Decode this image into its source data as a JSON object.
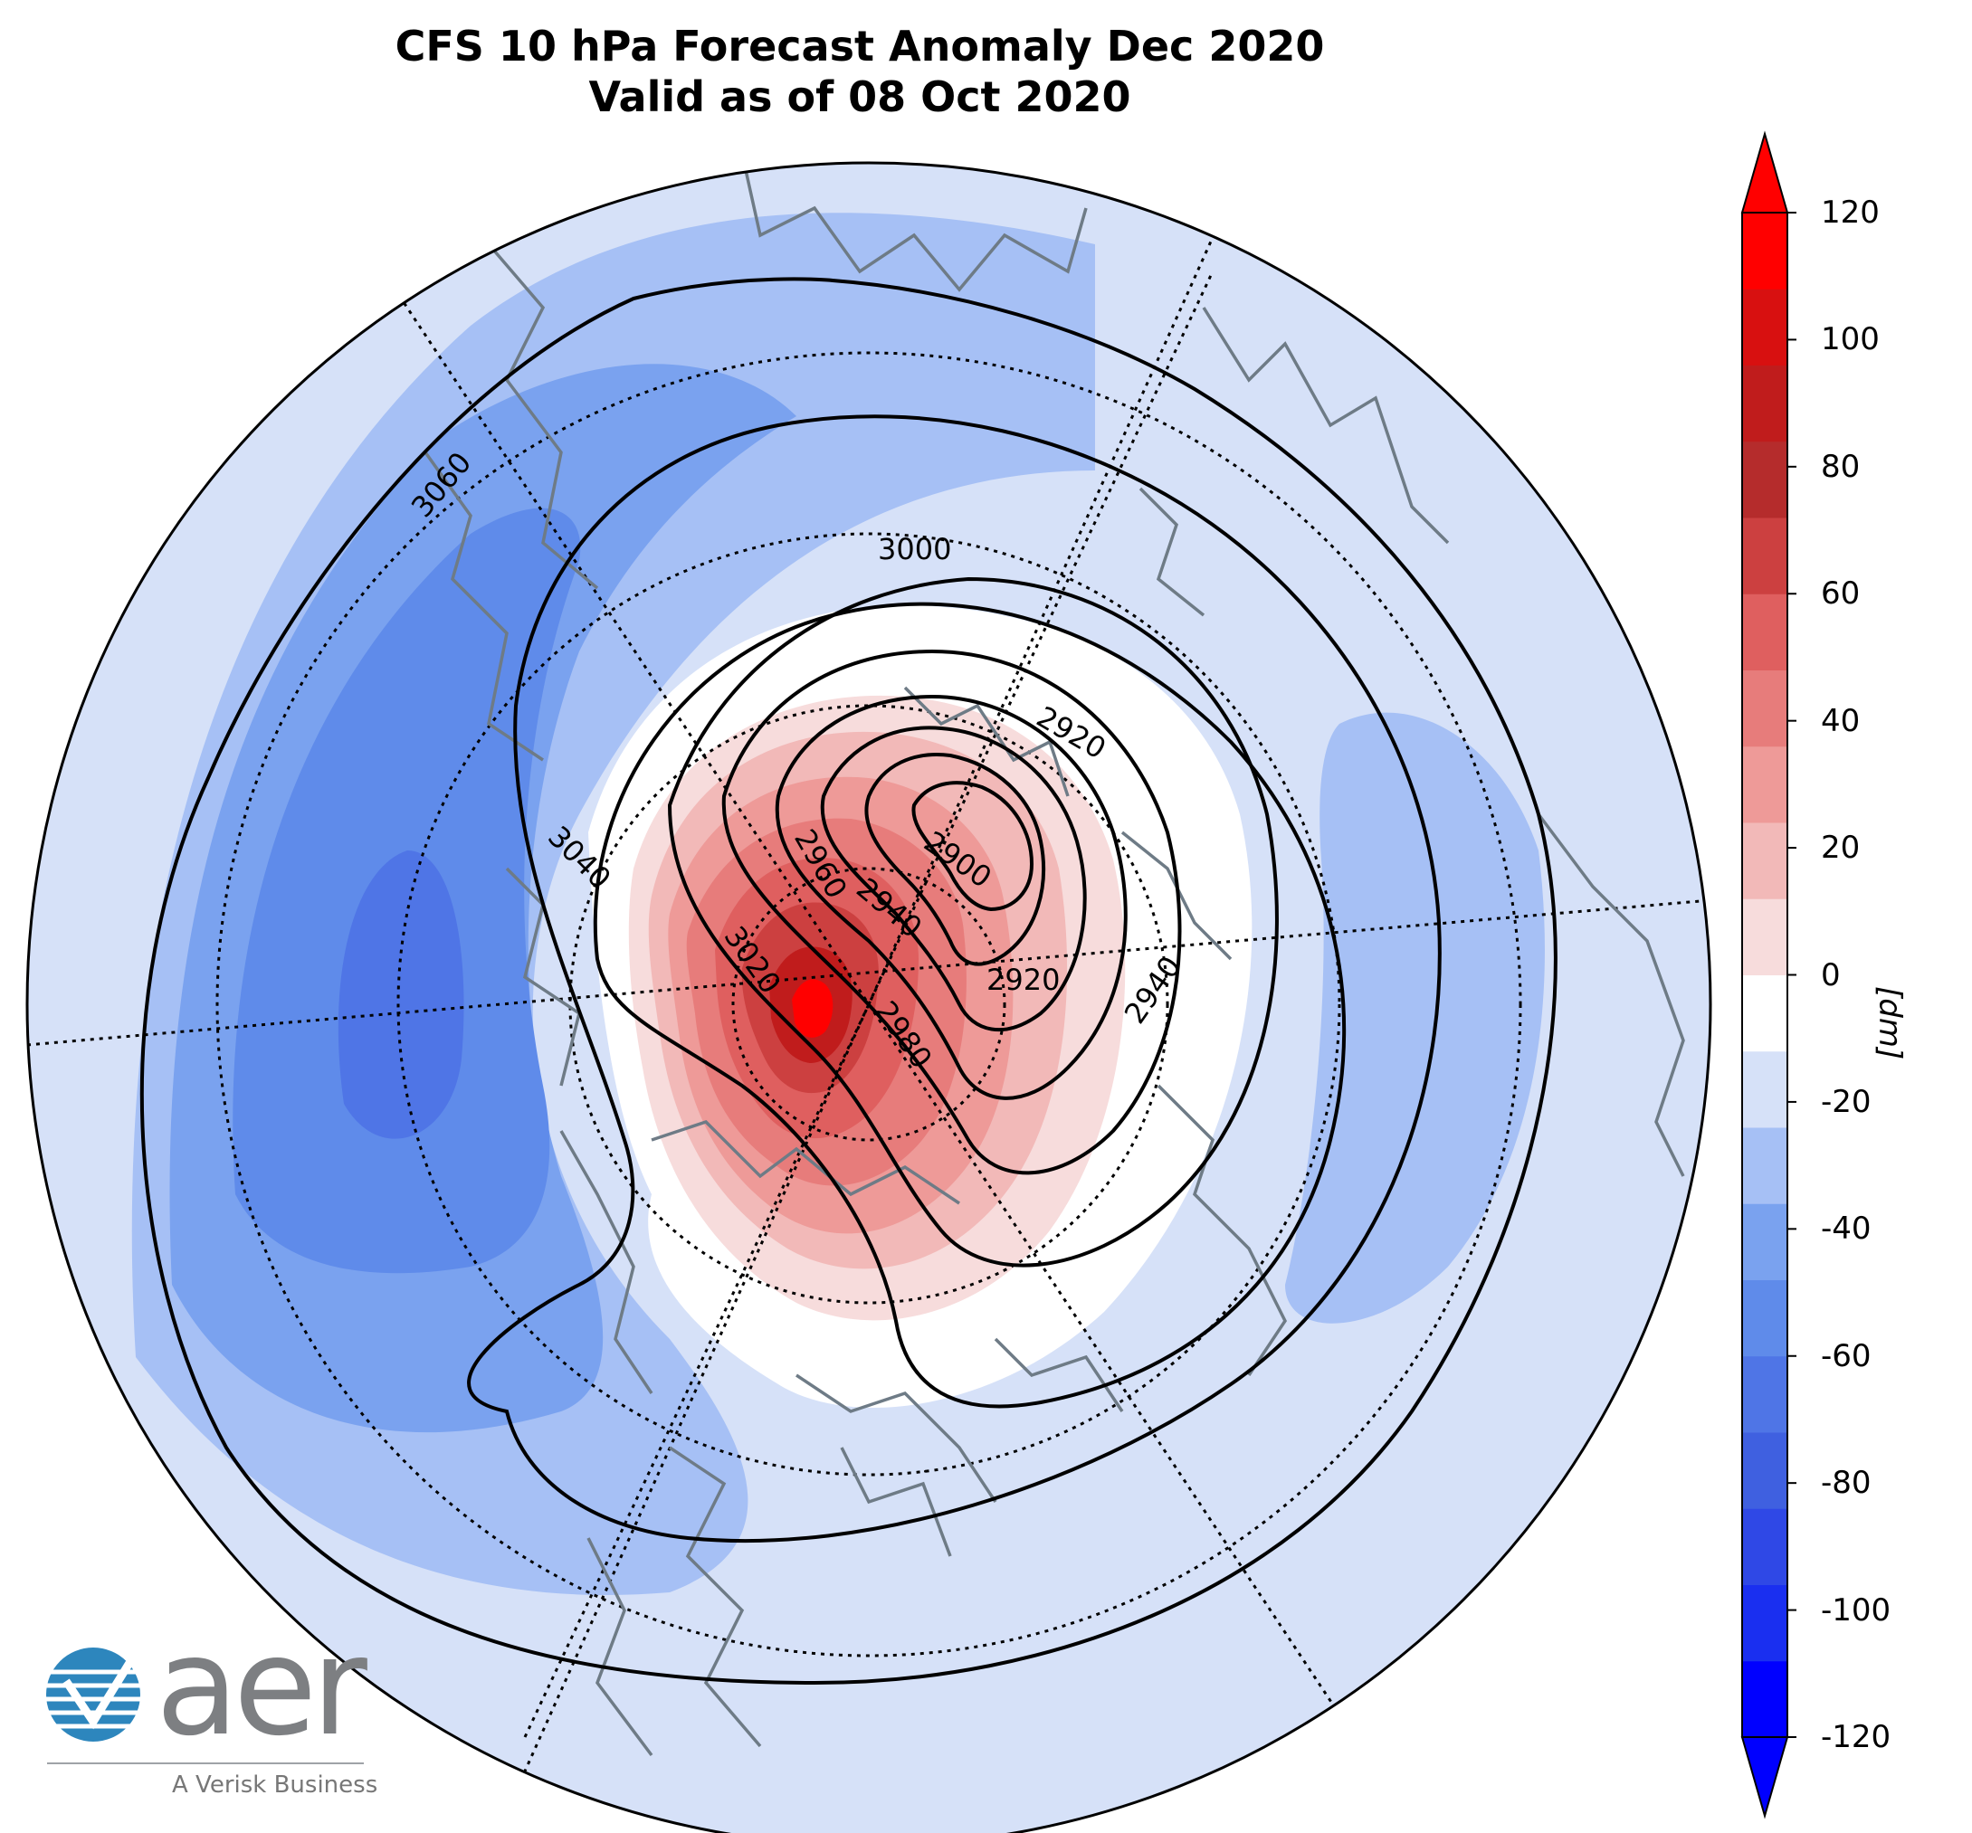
{
  "map": {
    "title_line1": "CFS 10 hPa Forecast Anomaly Dec 2020",
    "title_line2": "Valid as of 08 Oct 2020",
    "projection": "north-polar-stereographic",
    "contour_field": "10 hPa geopotential height",
    "contour_labels": [
      "3060",
      "3040",
      "3020",
      "3000",
      "2980",
      "2960",
      "2940",
      "2920",
      "2900",
      "2920",
      "2940"
    ],
    "features": [
      "coastlines",
      "latitude-circles",
      "meridians"
    ]
  },
  "colorbar": {
    "unit_label": "[dm]",
    "ticks": [
      "120",
      "100",
      "80",
      "60",
      "40",
      "20",
      "0",
      "-20",
      "-40",
      "-60",
      "-80",
      "-100",
      "-120"
    ],
    "range": [
      -120,
      120
    ],
    "step": 10,
    "colors": [
      "#0000ff",
      "#1a2ff0",
      "#2f48e6",
      "#3f60e0",
      "#4f75e6",
      "#5f8bea",
      "#7aa2ef",
      "#a6c0f5",
      "#d6e1f8",
      "#ffffff",
      "#f7dcdc",
      "#f2b9b8",
      "#ee9a98",
      "#e77c7b",
      "#df5f5f",
      "#cc4040",
      "#b52c2c",
      "#c01c1c",
      "#d81010",
      "#ff0000"
    ]
  },
  "logo": {
    "wordmark": "aer",
    "tagline": "A Verisk Business"
  }
}
